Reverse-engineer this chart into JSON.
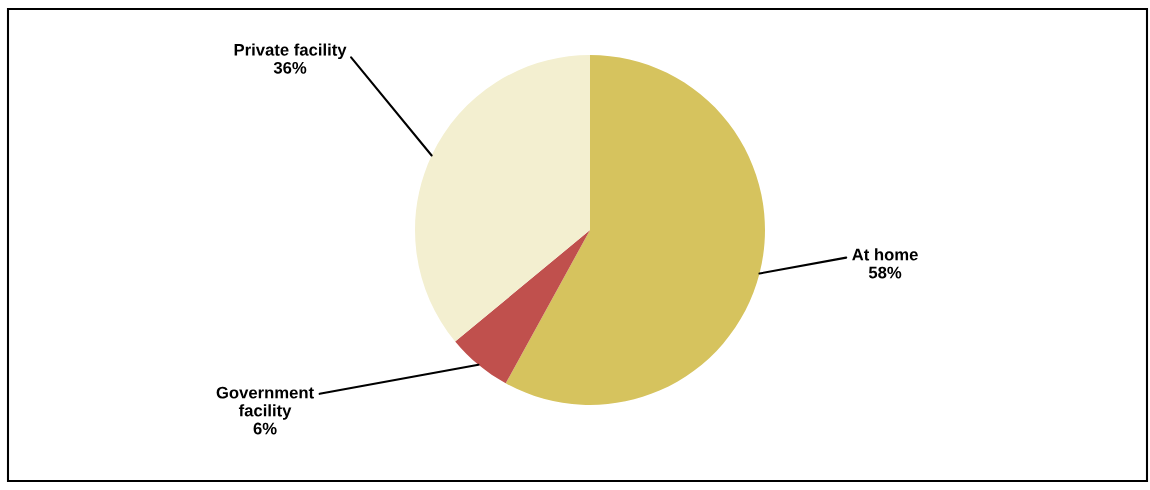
{
  "chart_data": {
    "type": "pie",
    "categories": [
      "At home",
      "Government\nfacility",
      "Private facility"
    ],
    "values": [
      58,
      6,
      36
    ],
    "colors": [
      "#d6c35e",
      "#c0504d",
      "#f3efd0"
    ],
    "value_labels": [
      "58%",
      "6%",
      "36%"
    ]
  }
}
